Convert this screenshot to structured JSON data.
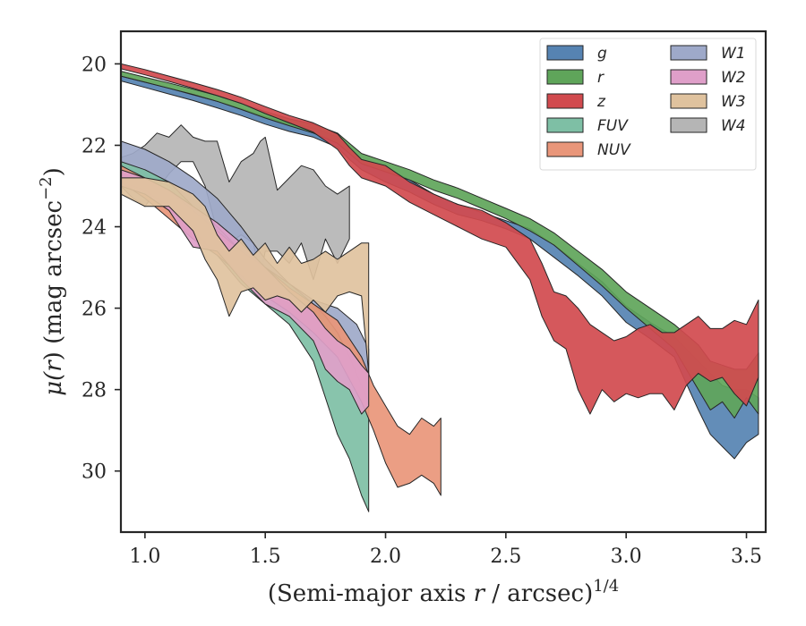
{
  "chart_data": {
    "type": "area",
    "xlabel_main": "(Semi-major axis ",
    "xlabel_var": "r",
    "xlabel_tail": " / arcsec)",
    "xlabel_sup": "1/4",
    "ylabel_pre": "μ(",
    "ylabel_var": "r",
    "ylabel_mid": ") (mag arcsec",
    "ylabel_sup": "−2",
    "ylabel_post": ")",
    "xlim": [
      0.9,
      3.58
    ],
    "ylim": [
      31.5,
      19.2
    ],
    "x_ticks": [
      {
        "value": 1.0,
        "label": "1.0"
      },
      {
        "value": 1.5,
        "label": "1.5"
      },
      {
        "value": 2.0,
        "label": "2.0"
      },
      {
        "value": 2.5,
        "label": "2.5"
      },
      {
        "value": 3.0,
        "label": "3.0"
      },
      {
        "value": 3.5,
        "label": "3.5"
      }
    ],
    "y_ticks": [
      {
        "value": 20,
        "label": "20"
      },
      {
        "value": 22,
        "label": "22"
      },
      {
        "value": 24,
        "label": "24"
      },
      {
        "value": 26,
        "label": "26"
      },
      {
        "value": 28,
        "label": "28"
      },
      {
        "value": 30,
        "label": "30"
      }
    ],
    "grid": false,
    "legend_position": "top-right",
    "series": [
      {
        "name": "W4",
        "color": "#b5b5b5",
        "points": [
          [
            0.9,
            22.3,
            23.0
          ],
          [
            0.95,
            22.2,
            23.3
          ],
          [
            1.0,
            22.0,
            23.5
          ],
          [
            1.05,
            21.7,
            23.1
          ],
          [
            1.1,
            21.8,
            22.7
          ],
          [
            1.15,
            21.5,
            22.4
          ],
          [
            1.2,
            21.8,
            22.4
          ],
          [
            1.25,
            21.9,
            23.0
          ],
          [
            1.3,
            21.9,
            24.1
          ],
          [
            1.35,
            22.9,
            24.4
          ],
          [
            1.4,
            22.4,
            24.2
          ],
          [
            1.45,
            22.2,
            24.4
          ],
          [
            1.48,
            21.9,
            25.2
          ],
          [
            1.5,
            21.8,
            24.6
          ],
          [
            1.55,
            23.1,
            24.6
          ],
          [
            1.6,
            22.8,
            24.9
          ],
          [
            1.65,
            22.5,
            24.4
          ],
          [
            1.7,
            22.6,
            25.3
          ],
          [
            1.75,
            23.0,
            24.3
          ],
          [
            1.8,
            23.2,
            24.9
          ],
          [
            1.85,
            23.0,
            24.3
          ]
        ]
      },
      {
        "name": "W1",
        "color": "#9ea9c9",
        "points": [
          [
            0.9,
            21.9,
            22.6
          ],
          [
            1.0,
            22.1,
            22.8
          ],
          [
            1.1,
            22.4,
            23.0
          ],
          [
            1.2,
            22.8,
            23.7
          ],
          [
            1.3,
            23.3,
            24.3
          ],
          [
            1.4,
            24.0,
            25.0
          ],
          [
            1.5,
            24.8,
            25.7
          ],
          [
            1.6,
            25.4,
            26.0
          ],
          [
            1.7,
            25.8,
            26.6
          ],
          [
            1.8,
            26.0,
            27.0
          ],
          [
            1.88,
            26.4,
            27.8
          ],
          [
            1.93,
            27.0,
            28.4
          ]
        ]
      },
      {
        "name": "FUV",
        "color": "#7ebfa5",
        "points": [
          [
            0.9,
            22.4,
            22.9
          ],
          [
            1.0,
            22.6,
            23.1
          ],
          [
            1.1,
            22.9,
            23.5
          ],
          [
            1.2,
            23.5,
            24.1
          ],
          [
            1.3,
            24.0,
            24.7
          ],
          [
            1.4,
            24.6,
            25.4
          ],
          [
            1.5,
            25.0,
            25.9
          ],
          [
            1.6,
            25.4,
            26.4
          ],
          [
            1.7,
            25.9,
            27.3
          ],
          [
            1.75,
            26.2,
            28.2
          ],
          [
            1.8,
            26.6,
            29.1
          ],
          [
            1.85,
            27.2,
            29.7
          ],
          [
            1.9,
            27.9,
            30.6
          ],
          [
            1.93,
            28.3,
            31.0
          ]
        ]
      },
      {
        "name": "NUV",
        "color": "#e9967a",
        "points": [
          [
            0.9,
            22.5,
            22.9
          ],
          [
            1.0,
            22.8,
            23.3
          ],
          [
            1.1,
            23.1,
            23.8
          ],
          [
            1.2,
            23.6,
            24.3
          ],
          [
            1.3,
            24.1,
            24.7
          ],
          [
            1.4,
            24.6,
            25.2
          ],
          [
            1.5,
            25.0,
            25.7
          ],
          [
            1.6,
            25.5,
            26.1
          ],
          [
            1.7,
            25.9,
            26.6
          ],
          [
            1.8,
            26.3,
            27.2
          ],
          [
            1.9,
            27.2,
            28.3
          ],
          [
            1.95,
            27.9,
            29.0
          ],
          [
            2.0,
            28.4,
            29.8
          ],
          [
            2.05,
            28.9,
            30.4
          ],
          [
            2.1,
            29.1,
            30.3
          ],
          [
            2.15,
            28.7,
            30.1
          ],
          [
            2.2,
            28.9,
            30.3
          ],
          [
            2.23,
            28.7,
            30.6
          ]
        ]
      },
      {
        "name": "W2",
        "color": "#df9fc9",
        "points": [
          [
            0.9,
            22.6,
            23.0
          ],
          [
            1.0,
            22.8,
            23.2
          ],
          [
            1.1,
            23.1,
            23.6
          ],
          [
            1.2,
            23.5,
            24.5
          ],
          [
            1.3,
            23.9,
            24.6
          ],
          [
            1.4,
            24.4,
            25.3
          ],
          [
            1.5,
            25.0,
            25.9
          ],
          [
            1.6,
            25.6,
            26.2
          ],
          [
            1.7,
            26.1,
            26.8
          ],
          [
            1.75,
            26.5,
            27.5
          ],
          [
            1.8,
            26.8,
            27.8
          ],
          [
            1.85,
            27.0,
            28.0
          ],
          [
            1.9,
            27.4,
            28.6
          ],
          [
            1.93,
            27.6,
            28.4
          ]
        ]
      },
      {
        "name": "W3",
        "color": "#dfc29e",
        "points": [
          [
            0.9,
            22.8,
            23.2
          ],
          [
            1.0,
            22.8,
            23.5
          ],
          [
            1.1,
            22.9,
            23.5
          ],
          [
            1.2,
            23.2,
            24.1
          ],
          [
            1.25,
            23.5,
            24.8
          ],
          [
            1.3,
            24.2,
            25.3
          ],
          [
            1.35,
            24.6,
            26.2
          ],
          [
            1.4,
            24.3,
            25.6
          ],
          [
            1.45,
            24.7,
            25.5
          ],
          [
            1.5,
            24.4,
            25.8
          ],
          [
            1.55,
            24.9,
            25.7
          ],
          [
            1.6,
            24.5,
            25.8
          ],
          [
            1.65,
            24.9,
            26.1
          ],
          [
            1.7,
            24.8,
            25.8
          ],
          [
            1.75,
            24.6,
            26.1
          ],
          [
            1.8,
            24.8,
            25.7
          ],
          [
            1.85,
            24.6,
            25.6
          ],
          [
            1.9,
            24.4,
            25.7
          ],
          [
            1.93,
            24.4,
            27.6
          ]
        ]
      },
      {
        "name": "g",
        "color": "#5683b2",
        "points": [
          [
            0.9,
            20.3,
            20.42
          ],
          [
            1.0,
            20.45,
            20.58
          ],
          [
            1.1,
            20.6,
            20.74
          ],
          [
            1.2,
            20.76,
            20.9
          ],
          [
            1.3,
            20.92,
            21.08
          ],
          [
            1.4,
            21.1,
            21.27
          ],
          [
            1.5,
            21.3,
            21.48
          ],
          [
            1.6,
            21.46,
            21.66
          ],
          [
            1.7,
            21.57,
            21.8
          ],
          [
            1.8,
            21.8,
            22.05
          ],
          [
            1.85,
            22.1,
            22.35
          ],
          [
            1.9,
            22.35,
            22.6
          ],
          [
            2.0,
            22.55,
            22.9
          ],
          [
            2.1,
            22.85,
            23.15
          ],
          [
            2.2,
            23.2,
            23.45
          ],
          [
            2.3,
            23.45,
            23.7
          ],
          [
            2.4,
            23.65,
            23.85
          ],
          [
            2.5,
            23.85,
            24.05
          ],
          [
            2.6,
            24.05,
            24.3
          ],
          [
            2.7,
            24.45,
            24.75
          ],
          [
            2.8,
            24.9,
            25.2
          ],
          [
            2.9,
            25.35,
            25.7
          ],
          [
            3.0,
            25.95,
            26.35
          ],
          [
            3.1,
            26.35,
            26.75
          ],
          [
            3.2,
            26.7,
            27.2
          ],
          [
            3.3,
            27.3,
            28.5
          ],
          [
            3.35,
            27.6,
            29.1
          ],
          [
            3.4,
            27.9,
            29.4
          ],
          [
            3.45,
            28.0,
            29.7
          ],
          [
            3.5,
            28.0,
            29.3
          ],
          [
            3.55,
            28.2,
            29.1
          ]
        ]
      },
      {
        "name": "r",
        "color": "#5fa55a",
        "points": [
          [
            0.9,
            20.18,
            20.3
          ],
          [
            1.0,
            20.33,
            20.45
          ],
          [
            1.1,
            20.47,
            20.6
          ],
          [
            1.2,
            20.62,
            20.75
          ],
          [
            1.3,
            20.78,
            20.92
          ],
          [
            1.4,
            20.97,
            21.12
          ],
          [
            1.5,
            21.17,
            21.33
          ],
          [
            1.6,
            21.35,
            21.52
          ],
          [
            1.7,
            21.48,
            21.7
          ],
          [
            1.8,
            21.7,
            21.95
          ],
          [
            1.85,
            21.95,
            22.2
          ],
          [
            1.9,
            22.2,
            22.45
          ],
          [
            2.0,
            22.4,
            22.65
          ],
          [
            2.1,
            22.6,
            22.85
          ],
          [
            2.2,
            22.85,
            23.1
          ],
          [
            2.3,
            23.05,
            23.3
          ],
          [
            2.4,
            23.3,
            23.55
          ],
          [
            2.5,
            23.55,
            23.8
          ],
          [
            2.6,
            23.8,
            24.1
          ],
          [
            2.7,
            24.15,
            24.45
          ],
          [
            2.8,
            24.6,
            24.95
          ],
          [
            2.9,
            25.05,
            25.45
          ],
          [
            3.0,
            25.6,
            26.0
          ],
          [
            3.1,
            26.0,
            26.5
          ],
          [
            3.2,
            26.4,
            27.0
          ],
          [
            3.3,
            26.9,
            28.0
          ],
          [
            3.35,
            27.3,
            28.5
          ],
          [
            3.4,
            27.4,
            28.3
          ],
          [
            3.45,
            27.5,
            28.7
          ],
          [
            3.5,
            27.5,
            28.2
          ],
          [
            3.55,
            27.1,
            28.6
          ]
        ]
      },
      {
        "name": "z",
        "color": "#d14a4e",
        "points": [
          [
            0.9,
            20.0,
            20.12
          ],
          [
            1.0,
            20.14,
            20.27
          ],
          [
            1.1,
            20.3,
            20.43
          ],
          [
            1.2,
            20.46,
            20.6
          ],
          [
            1.3,
            20.63,
            20.78
          ],
          [
            1.4,
            20.82,
            20.97
          ],
          [
            1.5,
            21.05,
            21.22
          ],
          [
            1.6,
            21.27,
            21.45
          ],
          [
            1.7,
            21.45,
            21.68
          ],
          [
            1.8,
            21.72,
            22.1
          ],
          [
            1.85,
            22.05,
            22.5
          ],
          [
            1.9,
            22.35,
            22.8
          ],
          [
            2.0,
            22.5,
            23.0
          ],
          [
            2.1,
            22.9,
            23.4
          ],
          [
            2.2,
            23.2,
            23.7
          ],
          [
            2.3,
            23.45,
            24.0
          ],
          [
            2.4,
            23.6,
            24.3
          ],
          [
            2.5,
            23.9,
            24.5
          ],
          [
            2.6,
            24.3,
            25.3
          ],
          [
            2.65,
            24.9,
            26.2
          ],
          [
            2.7,
            25.6,
            26.8
          ],
          [
            2.75,
            25.7,
            27.0
          ],
          [
            2.8,
            26.0,
            28.0
          ],
          [
            2.85,
            26.4,
            28.6
          ],
          [
            2.9,
            26.6,
            28.0
          ],
          [
            2.95,
            26.8,
            28.3
          ],
          [
            3.0,
            26.7,
            28.1
          ],
          [
            3.05,
            26.5,
            28.2
          ],
          [
            3.1,
            26.4,
            28.1
          ],
          [
            3.15,
            26.6,
            28.1
          ],
          [
            3.2,
            26.6,
            28.5
          ],
          [
            3.25,
            26.4,
            27.9
          ],
          [
            3.3,
            26.2,
            27.6
          ],
          [
            3.35,
            26.5,
            27.8
          ],
          [
            3.4,
            26.5,
            27.7
          ],
          [
            3.45,
            26.3,
            28.1
          ],
          [
            3.5,
            26.4,
            28.4
          ],
          [
            3.55,
            25.8,
            27.7
          ]
        ]
      }
    ],
    "legend": [
      {
        "label": "g",
        "color": "#5683b2"
      },
      {
        "label": "r",
        "color": "#5fa55a"
      },
      {
        "label": "z",
        "color": "#d14a4e"
      },
      {
        "label": "FUV",
        "color": "#7ebfa5"
      },
      {
        "label": "NUV",
        "color": "#e9967a"
      },
      {
        "label": "W1",
        "color": "#9ea9c9"
      },
      {
        "label": "W2",
        "color": "#df9fc9"
      },
      {
        "label": "W3",
        "color": "#dfc29e"
      },
      {
        "label": "W4",
        "color": "#b5b5b5"
      }
    ]
  }
}
